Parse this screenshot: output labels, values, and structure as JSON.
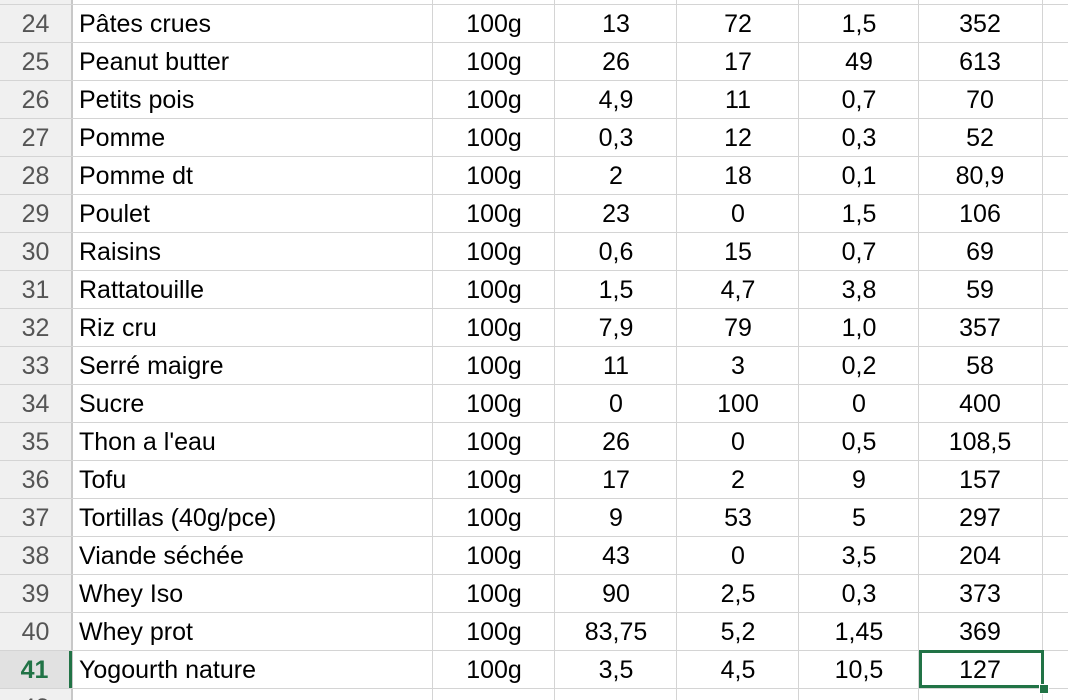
{
  "sheet": {
    "accent_color": "#217346",
    "selected_row": "41",
    "partial_top_row": "23",
    "partial_bottom_row": "42",
    "rows": [
      {
        "num": "24",
        "name": "Pâtes crues",
        "unit": "100g",
        "prot": "13",
        "gluc": "72",
        "lip": "1,5",
        "kcal": "352"
      },
      {
        "num": "25",
        "name": "Peanut butter",
        "unit": "100g",
        "prot": "26",
        "gluc": "17",
        "lip": "49",
        "kcal": "613"
      },
      {
        "num": "26",
        "name": "Petits pois",
        "unit": "100g",
        "prot": "4,9",
        "gluc": "11",
        "lip": "0,7",
        "kcal": "70"
      },
      {
        "num": "27",
        "name": "Pomme",
        "unit": "100g",
        "prot": "0,3",
        "gluc": "12",
        "lip": "0,3",
        "kcal": "52"
      },
      {
        "num": "28",
        "name": "Pomme dt",
        "unit": "100g",
        "prot": "2",
        "gluc": "18",
        "lip": "0,1",
        "kcal": "80,9"
      },
      {
        "num": "29",
        "name": "Poulet",
        "unit": "100g",
        "prot": "23",
        "gluc": "0",
        "lip": "1,5",
        "kcal": "106"
      },
      {
        "num": "30",
        "name": "Raisins",
        "unit": "100g",
        "prot": "0,6",
        "gluc": "15",
        "lip": "0,7",
        "kcal": "69"
      },
      {
        "num": "31",
        "name": "Rattatouille",
        "unit": "100g",
        "prot": "1,5",
        "gluc": "4,7",
        "lip": "3,8",
        "kcal": "59"
      },
      {
        "num": "32",
        "name": "Riz cru",
        "unit": "100g",
        "prot": "7,9",
        "gluc": "79",
        "lip": "1,0",
        "kcal": "357"
      },
      {
        "num": "33",
        "name": "Serré maigre",
        "unit": "100g",
        "prot": "11",
        "gluc": "3",
        "lip": "0,2",
        "kcal": "58"
      },
      {
        "num": "34",
        "name": "Sucre",
        "unit": "100g",
        "prot": "0",
        "gluc": "100",
        "lip": "0",
        "kcal": "400"
      },
      {
        "num": "35",
        "name": "Thon a l'eau",
        "unit": "100g",
        "prot": "26",
        "gluc": "0",
        "lip": "0,5",
        "kcal": "108,5"
      },
      {
        "num": "36",
        "name": "Tofu",
        "unit": "100g",
        "prot": "17",
        "gluc": "2",
        "lip": "9",
        "kcal": "157"
      },
      {
        "num": "37",
        "name": "Tortillas (40g/pce)",
        "unit": "100g",
        "prot": "9",
        "gluc": "53",
        "lip": "5",
        "kcal": "297"
      },
      {
        "num": "38",
        "name": "Viande séchée",
        "unit": "100g",
        "prot": "43",
        "gluc": "0",
        "lip": "3,5",
        "kcal": "204"
      },
      {
        "num": "39",
        "name": "Whey Iso",
        "unit": "100g",
        "prot": "90",
        "gluc": "2,5",
        "lip": "0,3",
        "kcal": "373"
      },
      {
        "num": "40",
        "name": "Whey prot",
        "unit": "100g",
        "prot": "83,75",
        "gluc": "5,2",
        "lip": "1,45",
        "kcal": "369"
      },
      {
        "num": "41",
        "name": "Yogourth nature",
        "unit": "100g",
        "prot": "3,5",
        "gluc": "4,5",
        "lip": "10,5",
        "kcal": "127"
      }
    ]
  }
}
